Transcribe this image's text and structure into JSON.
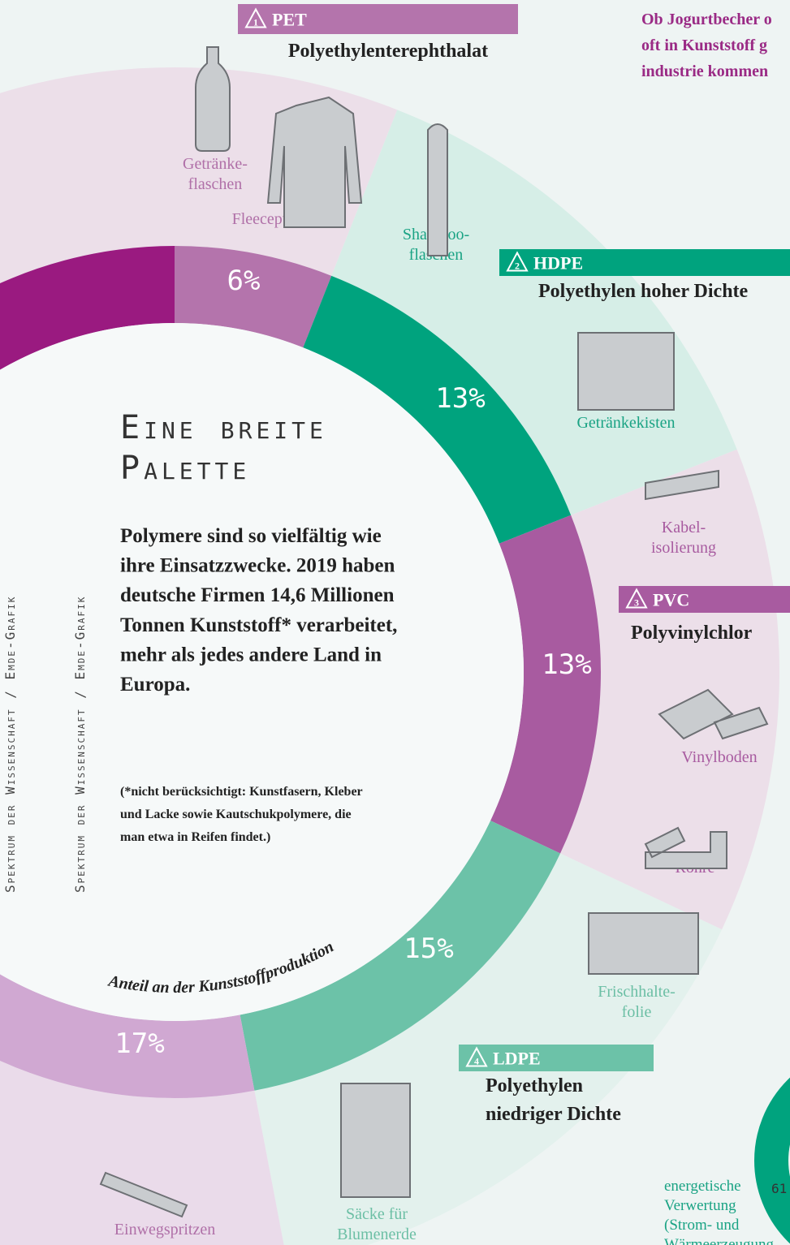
{
  "chart_data": {
    "type": "donut",
    "title": [
      "Eine breite",
      "Palette"
    ],
    "subtitle": [
      "Polymere sind so vielfältig wie",
      "ihre Einsatzzwecke. 2019 haben",
      "deutsche Firmen 14,6 Millionen",
      "Tonnen Kunststoff* verarbeitet,",
      "mehr als jedes andere Land in",
      "Europa."
    ],
    "note": [
      "(*nicht berücksichtigt: Kunstfasern, Kleber",
      "und Lacke sowie Kautschukpolymere, die",
      "man etwa in Reifen findet.)"
    ],
    "axis_label": "Anteil an der Kunststoffproduktion",
    "categories": [
      "PET",
      "HDPE",
      "PVC",
      "LDPE",
      null
    ],
    "values": [
      6,
      13,
      13,
      15,
      17
    ],
    "value_labels": [
      "6%",
      "13%",
      "13%",
      "15%",
      "17%"
    ],
    "colors": [
      "#b474ac",
      "#00a37e",
      "#a85ba0",
      "#6cc2a8",
      "#d0a8d2"
    ]
  },
  "plastics": [
    {
      "code": "1",
      "name": [
        "Polyethylenterephthalat"
      ],
      "products": [
        [
          "Getränke-",
          "flaschen"
        ],
        [
          "Fleecepullover"
        ]
      ]
    },
    {
      "code": "2",
      "name": [
        "Polyethylen hoher Dichte"
      ],
      "products": [
        [
          "Shampoo-",
          "flaschen"
        ],
        [
          "Getränkekisten"
        ]
      ]
    },
    {
      "code": "3",
      "name": [
        "Polyvinylchlor"
      ],
      "products": [
        [
          "Kabel-",
          "isolierung"
        ],
        [
          "Vinylboden"
        ],
        [
          "Rohre"
        ]
      ]
    },
    {
      "code": "4",
      "name": [
        "Polyethylen",
        "niedriger Dichte"
      ],
      "products": [
        [
          "Frischhalte-",
          "folie"
        ],
        [
          "Säcke für",
          "Blumenerde"
        ]
      ]
    },
    {
      "code": null,
      "name": [],
      "products": [
        [
          "Einwegspritzen"
        ]
      ]
    }
  ],
  "credits": [
    "Spektrum der Wissenschaft / Emde-Grafik",
    "Spektrum der Wissenschaft / Emde-Grafik"
  ],
  "intro": [
    "Ob Jogurtbecher o",
    "oft in Kunststoff g",
    "industrie kommen"
  ],
  "inset": {
    "value": "61",
    "label": [
      "energetische",
      "Verwertung",
      "(Strom- und",
      "Wärmeerzeugung"
    ]
  }
}
